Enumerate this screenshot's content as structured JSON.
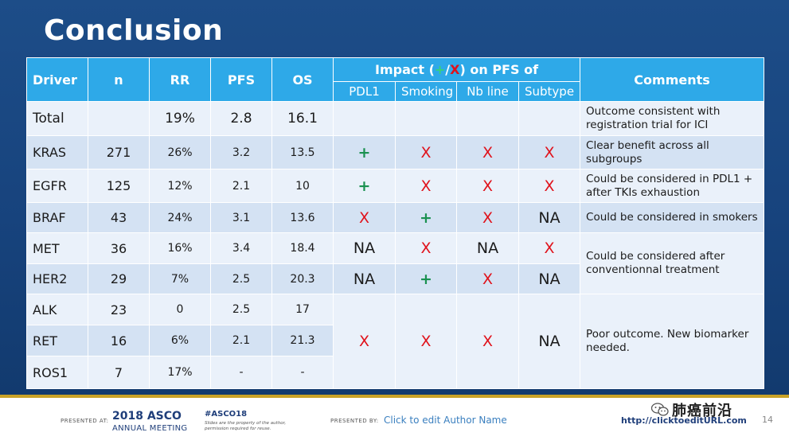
{
  "title": "Conclusion",
  "table": {
    "headers": {
      "driver": "Driver",
      "n": "n",
      "rr": "RR",
      "pfs": "PFS",
      "os": "OS",
      "impact_prefix": "Impact (",
      "impact_plus": "+",
      "impact_slash": "/",
      "impact_x": "X",
      "impact_suffix": ") on PFS of",
      "comments": "Comments",
      "sub": [
        "PDL1",
        "Smoking",
        "Nb line",
        "Subtype"
      ]
    },
    "rows": [
      {
        "driver": "Total",
        "n": "",
        "rr": "19%",
        "pfs": "2.8",
        "os": "16.1"
      },
      {
        "driver": "KRAS",
        "n": "271",
        "rr": "26%",
        "pfs": "3.2",
        "os": "13.5"
      },
      {
        "driver": "EGFR",
        "n": "125",
        "rr": "12%",
        "pfs": "2.1",
        "os": "10"
      },
      {
        "driver": "BRAF",
        "n": "43",
        "rr": "24%",
        "pfs": "3.1",
        "os": "13.6"
      },
      {
        "driver": "MET",
        "n": "36",
        "rr": "16%",
        "pfs": "3.4",
        "os": "18.4"
      },
      {
        "driver": "HER2",
        "n": "29",
        "rr": "7%",
        "pfs": "2.5",
        "os": "20.3"
      },
      {
        "driver": "ALK",
        "n": "23",
        "rr": "0",
        "pfs": "2.5",
        "os": "17"
      },
      {
        "driver": "RET",
        "n": "16",
        "rr": "6%",
        "pfs": "2.1",
        "os": "21.3"
      },
      {
        "driver": "ROS1",
        "n": "7",
        "rr": "17%",
        "pfs": "-",
        "os": "-"
      }
    ],
    "impact": {
      "kras": [
        "+",
        "X",
        "X",
        "X"
      ],
      "egfr": [
        "+",
        "X",
        "X",
        "X"
      ],
      "braf": [
        "X",
        "+",
        "X",
        "NA"
      ],
      "met": [
        "NA",
        "X",
        "NA",
        "X"
      ],
      "her2": [
        "NA",
        "+",
        "X",
        "NA"
      ],
      "group": [
        "X",
        "X",
        "X",
        "NA"
      ]
    },
    "comments": {
      "total": "Outcome consistent with registration trial for ICI",
      "kras": "Clear benefit across all subgroups",
      "egfr": "Could be considered in PDL1 + after TKIs exhaustion",
      "braf": "Could be considered in smokers",
      "met_her2": "Could be considered after conventionnal treatment",
      "alk_ret_ros1": "Poor outcome. New biomarker needed."
    }
  },
  "footer": {
    "presented_at": "PRESENTED AT:",
    "asco_year": "2018 ASCO",
    "asco_meeting": "ANNUAL MEETING",
    "hashtag": "#ASCO18",
    "disclaimer": "Slides are the property of the author, permission required for reuse.",
    "presented_by": "PRESENTED BY:",
    "author": "Click to edit Author Name",
    "url": "http://clicktoeditURL.com",
    "page": "14",
    "watermark": "肺癌前沿"
  },
  "colors": {
    "background": "#17427a",
    "header": "#2ea9e8",
    "plus": "#1a9150",
    "cross": "#e0121b",
    "row_light": "#eaf1fa",
    "row_dark": "#d4e2f3"
  }
}
